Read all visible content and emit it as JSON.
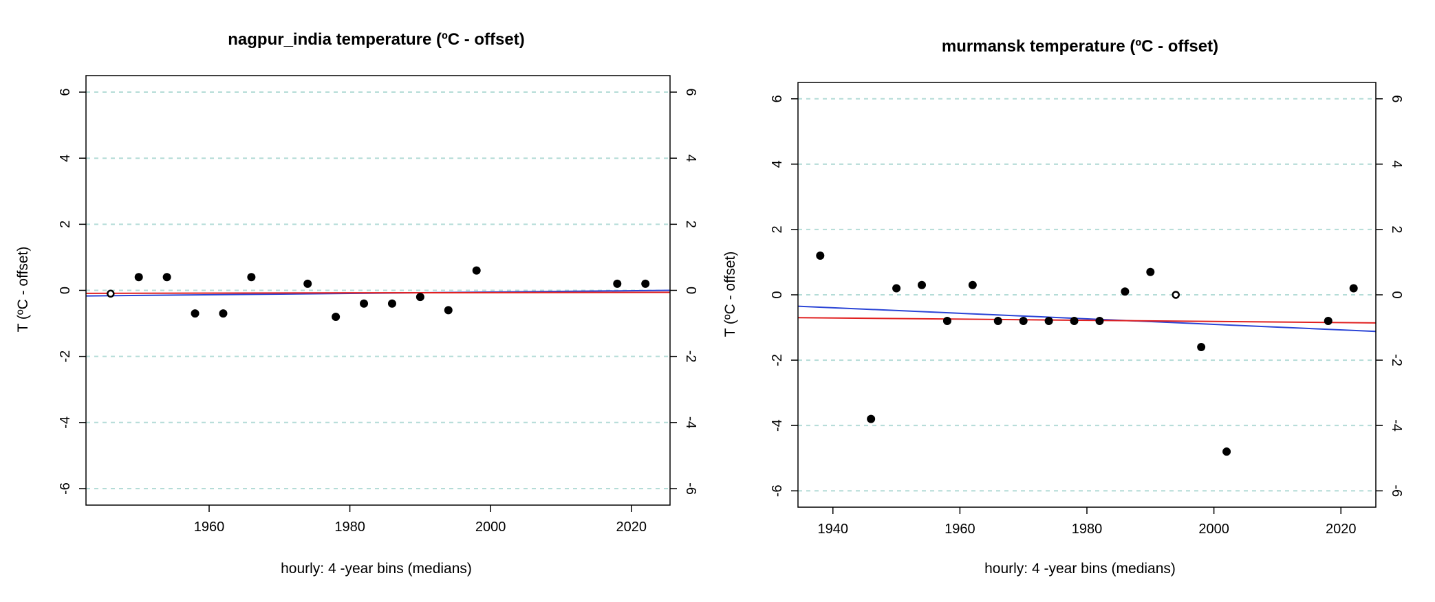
{
  "charts": [
    {
      "type": "scatter",
      "title": "nagpur_india temperature (ºC - offset)",
      "xlabel": "hourly:  4 -year bins (medians)",
      "ylabel": "T (ºC - offset)",
      "xlim": [
        1942.5,
        2025.5
      ],
      "ylim": [
        -6.5,
        6.5
      ],
      "x_ticks": [
        "1960",
        "1980",
        "2000",
        "2020"
      ],
      "x_tick_values": [
        1960,
        1980,
        2000,
        2020
      ],
      "y_ticks": [
        "-6",
        "-4",
        "-2",
        "0",
        "2",
        "4",
        "6"
      ],
      "y_tick_values": [
        -6,
        -4,
        -2,
        0,
        2,
        4,
        6
      ],
      "grid": "horizontal dashed",
      "grid_color": "#b4dcd7",
      "points": {
        "x": [
          1946,
          1950,
          1954,
          1958,
          1962,
          1966,
          1974,
          1978,
          1982,
          1986,
          1990,
          1994,
          1998,
          2018,
          2022
        ],
        "y": [
          -0.1,
          0.4,
          0.4,
          -0.7,
          -0.7,
          0.4,
          0.2,
          -0.8,
          -0.4,
          -0.4,
          -0.2,
          -0.6,
          0.6,
          0.2,
          0.2
        ],
        "filled": [
          false,
          true,
          true,
          true,
          true,
          true,
          true,
          true,
          true,
          true,
          true,
          true,
          true,
          true,
          true
        ],
        "color": "#000000"
      },
      "trend_lines": [
        {
          "color": "#2a44d6",
          "x": [
            1942.5,
            2025.5
          ],
          "y": [
            -0.17,
            0.0
          ]
        },
        {
          "color": "#e02020",
          "x": [
            1942.5,
            2025.5
          ],
          "y": [
            -0.09,
            -0.06
          ]
        }
      ]
    },
    {
      "type": "scatter",
      "title": "murmansk temperature (ºC - offset)",
      "xlabel": "hourly:  4 -year bins (medians)",
      "ylabel": "T (ºC - offset)",
      "xlim": [
        1934.5,
        2025.5
      ],
      "ylim": [
        -6.5,
        6.5
      ],
      "x_ticks": [
        "1940",
        "1960",
        "1980",
        "2000",
        "2020"
      ],
      "x_tick_values": [
        1940,
        1960,
        1980,
        2000,
        2020
      ],
      "y_ticks": [
        "-6",
        "-4",
        "-2",
        "0",
        "2",
        "4",
        "6"
      ],
      "y_tick_values": [
        -6,
        -4,
        -2,
        0,
        2,
        4,
        6
      ],
      "grid": "horizontal dashed",
      "grid_color": "#b4dcd7",
      "points": {
        "x": [
          1938,
          1946,
          1950,
          1954,
          1958,
          1962,
          1966,
          1970,
          1974,
          1978,
          1982,
          1986,
          1990,
          1994,
          1998,
          2002,
          2018,
          2022
        ],
        "y": [
          1.2,
          -3.8,
          0.2,
          0.3,
          -0.8,
          0.3,
          -0.8,
          -0.8,
          -0.8,
          -0.8,
          -0.8,
          0.1,
          0.7,
          0.0,
          -1.6,
          -4.8,
          -0.8,
          0.2
        ],
        "filled": [
          true,
          true,
          true,
          true,
          true,
          true,
          true,
          true,
          true,
          true,
          true,
          true,
          true,
          false,
          true,
          true,
          true,
          true
        ],
        "color": "#000000"
      },
      "trend_lines": [
        {
          "color": "#2a44d6",
          "x": [
            1934.5,
            2025.5
          ],
          "y": [
            -0.35,
            -1.12
          ]
        },
        {
          "color": "#e02020",
          "x": [
            1934.5,
            2025.5
          ],
          "y": [
            -0.7,
            -0.86
          ]
        }
      ]
    }
  ]
}
